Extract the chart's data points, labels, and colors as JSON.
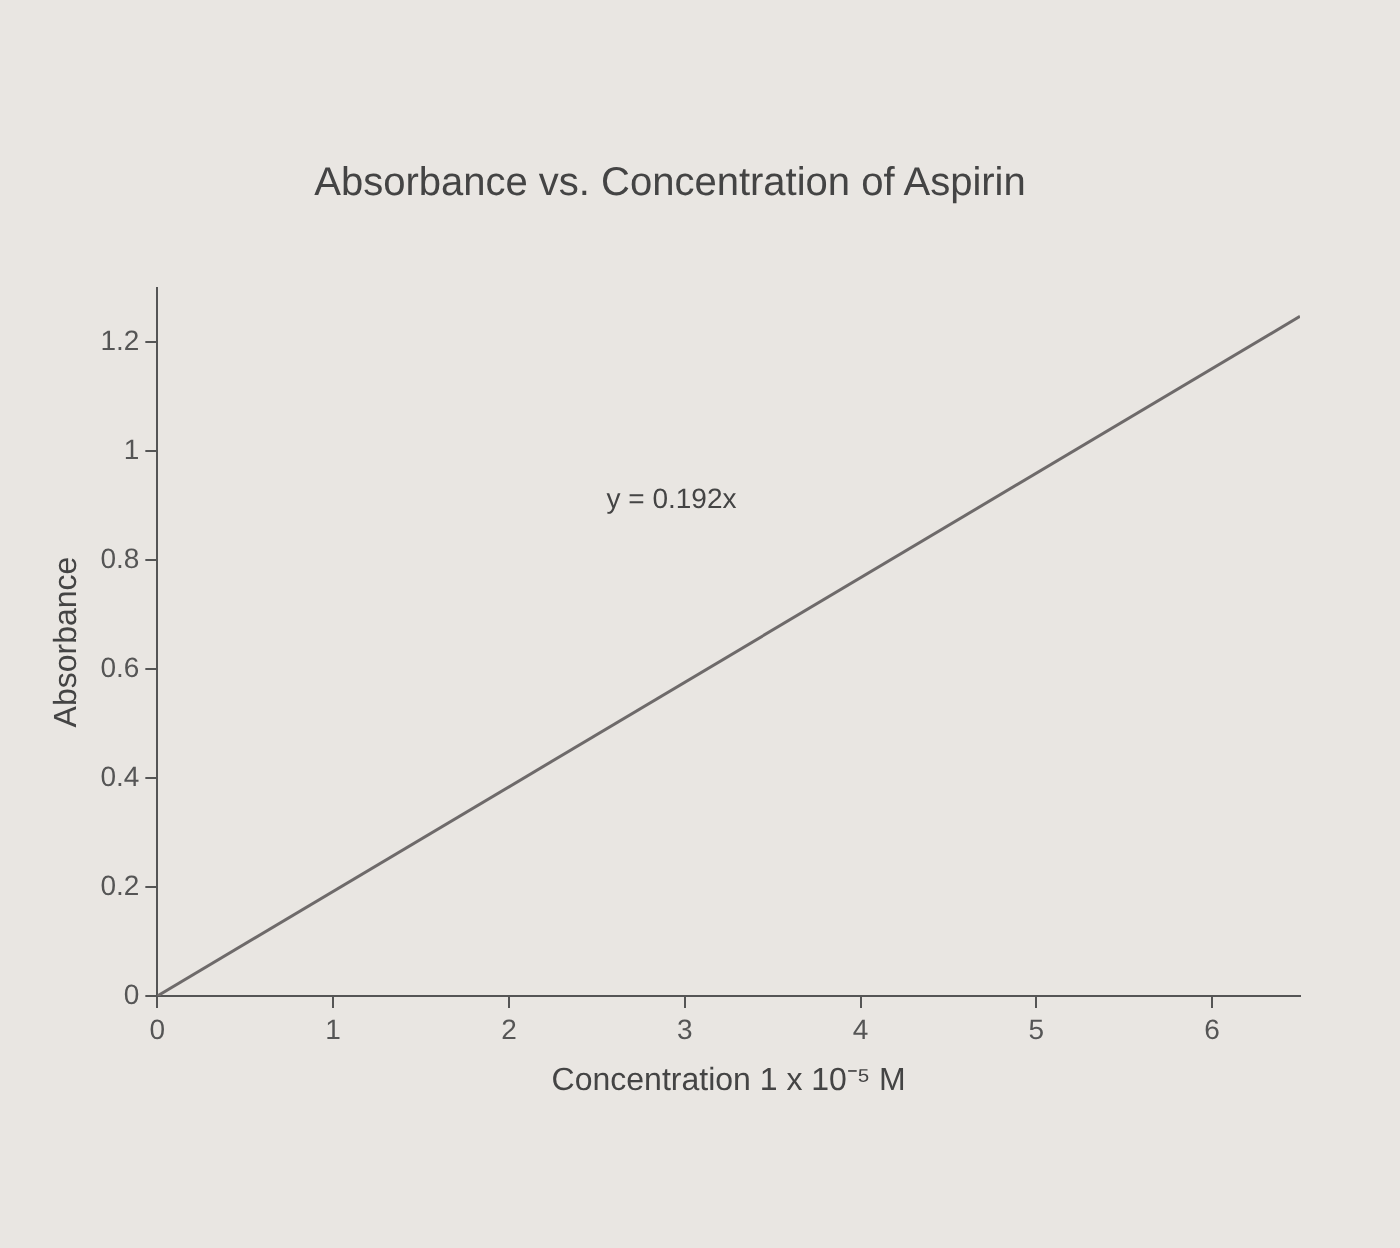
{
  "chart_data": {
    "type": "line",
    "title": "Absorbance vs. Concentration of Aspirin",
    "xlabel": "Concentration 1 x 10⁻⁵ M",
    "ylabel": "Absorbance",
    "series": [
      {
        "color": "#6e6a6a",
        "x": [
          0,
          6.5
        ],
        "values": [
          0,
          1.248
        ]
      }
    ],
    "xlim": [
      0,
      6.5
    ],
    "xticks": [
      0,
      1,
      2,
      3,
      4,
      5,
      6
    ],
    "ylim": [
      0,
      1.3
    ],
    "yticks": [
      0,
      0.2,
      0.4,
      0.6,
      0.8,
      1,
      1.2
    ],
    "annotations": [
      "y = 0.192x"
    ],
    "grid": false,
    "legend": false,
    "marker": "none",
    "line_style": "solid"
  }
}
